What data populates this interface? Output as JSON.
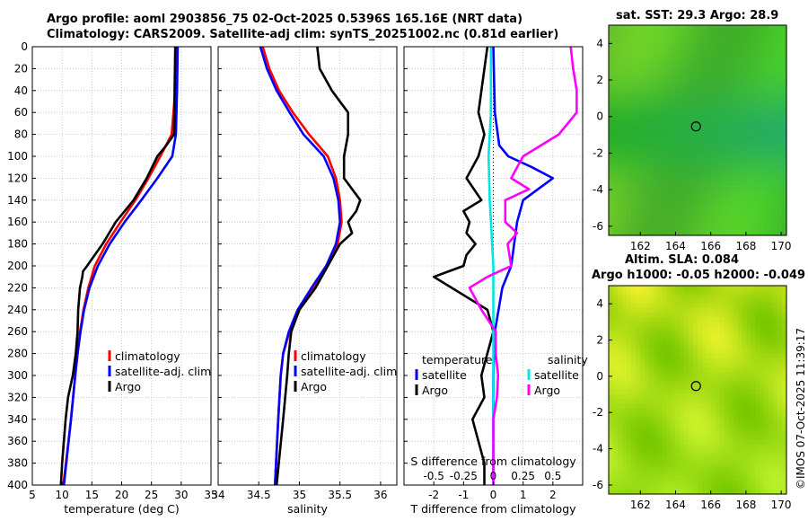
{
  "title": {
    "line1": "Argo profile: aoml 2903856_75 02-Oct-2025 0.5396S 165.16E (NRT data)",
    "line2": "Climatology: CARS2009. Satellite-adj clim: synTS_20251002.nc (0.81d earlier)"
  },
  "colors": {
    "climatology": "#ff0000",
    "satellite": "#0000ff",
    "argo": "#000000",
    "cyan": "#00e5e5",
    "magenta": "#ff00ff"
  },
  "copyright": "©IMOS 07-Oct-2025 11:39:17",
  "chart_data": [
    {
      "id": "temperature",
      "type": "line",
      "xlabel": "temperature (deg C)",
      "xlim": [
        5,
        35
      ],
      "ylim": [
        400,
        0
      ],
      "xticks": [
        5,
        10,
        15,
        20,
        25,
        30,
        35
      ],
      "yticks": [
        0,
        20,
        40,
        60,
        80,
        100,
        120,
        140,
        160,
        180,
        200,
        220,
        240,
        260,
        280,
        300,
        320,
        340,
        360,
        380,
        400
      ],
      "legend": [
        "climatology",
        "satellite-adj. clim",
        "Argo"
      ],
      "series": [
        {
          "name": "climatology",
          "color": "#ff0000",
          "depth": [
            0,
            40,
            80,
            100,
            120,
            140,
            160,
            180,
            200,
            220,
            240,
            260,
            280,
            300,
            340,
            400
          ],
          "values": [
            29.2,
            29.0,
            28.4,
            26.5,
            24.5,
            22.3,
            19.8,
            17.4,
            15.5,
            14.4,
            13.6,
            13.0,
            12.6,
            12.2,
            11.5,
            10.2
          ]
        },
        {
          "name": "satellite-adj. clim",
          "color": "#0000ff",
          "depth": [
            0,
            40,
            80,
            100,
            120,
            140,
            160,
            180,
            200,
            220,
            240,
            260,
            280,
            300,
            340,
            400
          ],
          "values": [
            29.4,
            29.3,
            29.1,
            28.5,
            26.0,
            23.3,
            20.5,
            18.0,
            16.0,
            14.6,
            13.7,
            13.1,
            12.6,
            12.2,
            11.5,
            10.3
          ]
        },
        {
          "name": "Argo",
          "color": "#000000",
          "depth": [
            0,
            40,
            80,
            90,
            100,
            120,
            140,
            160,
            180,
            190,
            200,
            205,
            210,
            220,
            240,
            260,
            280,
            300,
            320,
            340,
            380,
            400
          ],
          "values": [
            29.0,
            28.9,
            28.8,
            27.5,
            26.0,
            24.2,
            22.0,
            19.0,
            16.8,
            15.5,
            14.2,
            13.5,
            13.4,
            13.0,
            12.7,
            12.6,
            12.3,
            11.8,
            11.0,
            10.6,
            10.0,
            9.8
          ]
        }
      ]
    },
    {
      "id": "salinity",
      "type": "line",
      "xlabel": "salinity",
      "xlim": [
        34,
        36.2
      ],
      "ylim": [
        400,
        0
      ],
      "xticks": [
        34,
        34.5,
        35,
        35.5,
        36
      ],
      "legend": [
        "climatology",
        "satellite-adj. clim",
        "Argo"
      ],
      "series": [
        {
          "name": "climatology",
          "color": "#ff0000",
          "depth": [
            0,
            20,
            40,
            60,
            80,
            100,
            120,
            140,
            160,
            180,
            200,
            220,
            240,
            260,
            280,
            300,
            340,
            400
          ],
          "values": [
            34.55,
            34.63,
            34.75,
            34.92,
            35.12,
            35.35,
            35.45,
            35.5,
            35.52,
            35.47,
            35.35,
            35.18,
            35.0,
            34.88,
            34.8,
            34.77,
            34.74,
            34.7
          ]
        },
        {
          "name": "satellite-adj. clim",
          "color": "#0000ff",
          "depth": [
            0,
            20,
            40,
            60,
            80,
            100,
            120,
            140,
            160,
            180,
            200,
            220,
            240,
            260,
            280,
            300,
            340,
            400
          ],
          "values": [
            34.52,
            34.6,
            34.72,
            34.88,
            35.05,
            35.3,
            35.42,
            35.48,
            35.5,
            35.45,
            35.33,
            35.15,
            34.98,
            34.87,
            34.8,
            34.77,
            34.74,
            34.7
          ]
        },
        {
          "name": "Argo",
          "color": "#000000",
          "depth": [
            0,
            20,
            40,
            60,
            80,
            100,
            120,
            140,
            150,
            160,
            170,
            180,
            200,
            220,
            240,
            260,
            280,
            300,
            340,
            400
          ],
          "values": [
            35.22,
            35.25,
            35.4,
            35.6,
            35.6,
            35.55,
            35.55,
            35.75,
            35.7,
            35.6,
            35.65,
            35.5,
            35.35,
            35.2,
            35.0,
            34.9,
            34.87,
            34.85,
            34.8,
            34.72
          ]
        }
      ]
    },
    {
      "id": "differences",
      "type": "line",
      "xlabel": "T difference from climatology",
      "xlabel_top": "S difference from climatology",
      "xlim": [
        -3,
        3
      ],
      "ylim": [
        400,
        0
      ],
      "xticks": [
        -2,
        -1,
        0,
        1,
        2
      ],
      "xticks_top": [
        "-0.5",
        "-0.25",
        "0",
        "0.25",
        "0.5"
      ],
      "legend_temperature": {
        "title": "temperature",
        "items": [
          "satellite",
          "Argo"
        ]
      },
      "legend_salinity": {
        "title": "salinity",
        "items": [
          "satellite",
          "Argo"
        ]
      },
      "series": [
        {
          "name": "T satellite",
          "color": "#0000ff",
          "depth": [
            0,
            60,
            90,
            100,
            110,
            120,
            130,
            140,
            160,
            180,
            200,
            220,
            260,
            300,
            400
          ],
          "values": [
            0.0,
            0.05,
            0.2,
            0.5,
            1.3,
            2.0,
            1.5,
            1.0,
            0.8,
            0.7,
            0.6,
            0.3,
            0.05,
            0.0,
            0.0
          ]
        },
        {
          "name": "T Argo",
          "color": "#000000",
          "depth": [
            0,
            60,
            80,
            100,
            120,
            140,
            150,
            160,
            170,
            180,
            190,
            200,
            210,
            220,
            240,
            260,
            300,
            320,
            340,
            380,
            400
          ],
          "values": [
            -0.2,
            -0.5,
            -0.3,
            -0.5,
            -0.9,
            -0.4,
            -1.0,
            -0.8,
            -0.9,
            -0.6,
            -0.9,
            -1.0,
            -2.0,
            -1.4,
            -0.2,
            0.0,
            -0.4,
            -0.3,
            -0.7,
            -0.3,
            -0.3
          ]
        },
        {
          "name": "S satellite",
          "color": "#00e5e5",
          "depth": [
            0,
            60,
            100,
            140,
            200,
            260,
            320,
            400
          ],
          "values": [
            -0.02,
            -0.02,
            -0.04,
            -0.03,
            0.0,
            0.0,
            0.0,
            0.0
          ]
        },
        {
          "name": "S Argo",
          "color": "#ff00ff",
          "depth": [
            0,
            20,
            40,
            60,
            80,
            100,
            120,
            130,
            140,
            160,
            170,
            180,
            200,
            210,
            220,
            240,
            260,
            280,
            300,
            320,
            340,
            400
          ],
          "values": [
            0.65,
            0.67,
            0.7,
            0.7,
            0.55,
            0.25,
            0.15,
            0.3,
            0.1,
            0.1,
            0.2,
            0.12,
            0.15,
            -0.05,
            -0.2,
            -0.1,
            0.02,
            0.02,
            0.04,
            0.03,
            0.0,
            0.0
          ]
        }
      ]
    },
    {
      "id": "sst_map",
      "type": "heatmap",
      "title": "sat. SST: 29.3 Argo: 28.9",
      "xlim": [
        160.2,
        170.3
      ],
      "ylim": [
        -6.5,
        5
      ],
      "xticks": [
        162,
        164,
        166,
        168,
        170
      ],
      "yticks": [
        4,
        2,
        0,
        -2,
        -4,
        -6
      ],
      "marker": {
        "lon": 165.16,
        "lat": -0.54
      }
    },
    {
      "id": "sla_map",
      "type": "heatmap",
      "title_line1": "Altim. SLA: 0.084",
      "title_line2": "Argo h1000: -0.05 h2000: -0.049",
      "xlim": [
        160.2,
        170.3
      ],
      "ylim": [
        -6.5,
        5
      ],
      "xticks": [
        162,
        164,
        166,
        168,
        170
      ],
      "yticks": [
        4,
        2,
        0,
        -2,
        -4,
        -6
      ],
      "marker": {
        "lon": 165.16,
        "lat": -0.54
      }
    }
  ]
}
